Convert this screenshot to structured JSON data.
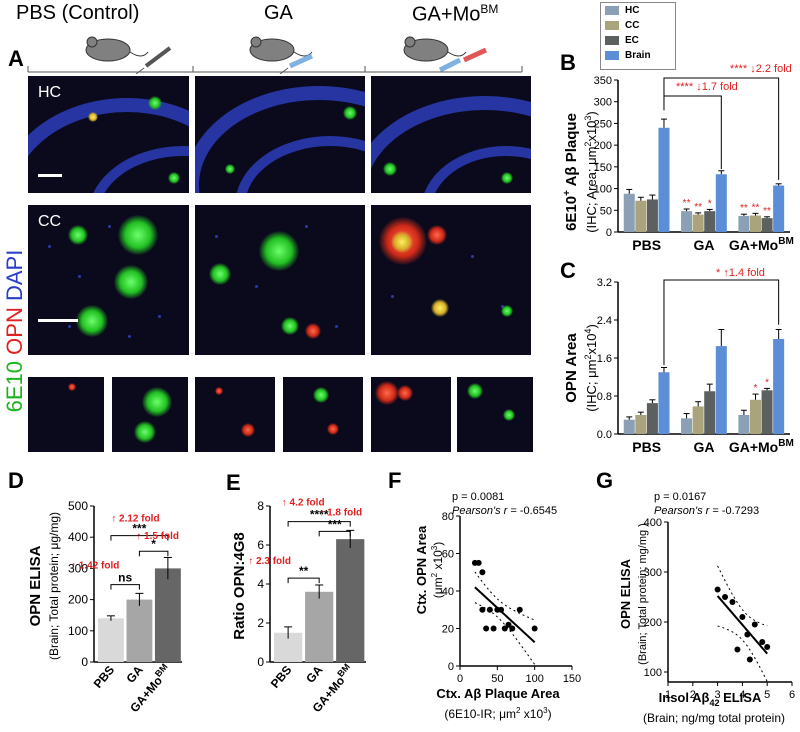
{
  "header": {
    "groups": [
      "PBS (Control)",
      "GA",
      "GA+Mo"
    ],
    "group_sup": [
      "",
      "",
      "BM"
    ]
  },
  "panels": {
    "A": "A",
    "B": "B",
    "C": "C",
    "D": "D",
    "E": "E",
    "F": "F",
    "G": "G"
  },
  "micro": {
    "row1_label": "HC",
    "row2_label": "CC",
    "stain_label": [
      "6E10",
      "OPN",
      "DAPI"
    ]
  },
  "legend": {
    "items": [
      {
        "name": "HC",
        "color": "#8b9fb5"
      },
      {
        "name": "CC",
        "color": "#a9a47c"
      },
      {
        "name": "EC",
        "color": "#5d6060"
      },
      {
        "name": "Brain",
        "color": "#5b8ed6"
      }
    ]
  },
  "chart_data": [
    {
      "id": "B",
      "type": "bar",
      "categories": [
        "PBS",
        "GA",
        "GA+Mo"
      ],
      "category_sup": [
        "",
        "",
        "BM"
      ],
      "series_names": [
        "HC",
        "CC",
        "EC",
        "Brain"
      ],
      "values": [
        [
          88,
          72,
          75,
          240
        ],
        [
          48,
          40,
          48,
          133
        ],
        [
          37,
          38,
          32,
          107
        ]
      ],
      "errors": [
        [
          10,
          8,
          10,
          20
        ],
        [
          5,
          4,
          4,
          8
        ],
        [
          4,
          5,
          3,
          4
        ]
      ],
      "ylabel": "6E10",
      "ylabel_sup": "+",
      "ylabel_rest": " Aβ Plaque",
      "ylabel2": "(IHC; Area; μm",
      "ylabel2_sup": "2",
      "ylabel2_rest": "x10",
      "ylabel2_sup2": "3",
      "ylabel2_end": ")",
      "ylim": [
        0,
        350
      ],
      "yticks": [
        "0",
        "50",
        "100",
        "150",
        "200",
        "250",
        "300",
        "350"
      ],
      "sig_marks": [
        "**",
        "**",
        "*",
        "**",
        "**",
        "**"
      ],
      "annotations": [
        {
          "stars": "****",
          "fold": "↓2.2 fold"
        },
        {
          "stars": "****",
          "fold": "↓1.7 fold"
        }
      ]
    },
    {
      "id": "C",
      "type": "bar",
      "categories": [
        "PBS",
        "GA",
        "GA+Mo"
      ],
      "category_sup": [
        "",
        "",
        "BM"
      ],
      "series_names": [
        "HC",
        "CC",
        "EC",
        "Brain"
      ],
      "values": [
        [
          0.3,
          0.4,
          0.65,
          1.3
        ],
        [
          0.33,
          0.58,
          0.9,
          1.85
        ],
        [
          0.4,
          0.72,
          0.92,
          2.0
        ]
      ],
      "errors": [
        [
          0.06,
          0.06,
          0.07,
          0.1
        ],
        [
          0.1,
          0.1,
          0.15,
          0.35
        ],
        [
          0.1,
          0.12,
          0.04,
          0.2
        ]
      ],
      "ylabel": "OPN Area",
      "ylabel2": "(IHC; μm",
      "ylabel2_sup": "2",
      "ylabel2_rest": "x10",
      "ylabel2_sup2": "4",
      "ylabel2_end": ")",
      "ylim": [
        0,
        3.2
      ],
      "yticks": [
        "0.0",
        "0.8",
        "1.6",
        "2.4",
        "3.2"
      ],
      "sig_marks": [
        "*",
        "*"
      ],
      "annotations": [
        {
          "stars": "*",
          "fold": "↑1.4 fold"
        }
      ]
    },
    {
      "id": "D",
      "type": "bar",
      "categories": [
        "PBS",
        "GA",
        "GA+Mo"
      ],
      "category_sup": [
        "",
        "",
        "BM"
      ],
      "values": [
        140,
        200,
        300
      ],
      "errors": [
        8,
        20,
        35
      ],
      "colors": [
        "#d9d9d9",
        "#a6a6a6",
        "#666666"
      ],
      "ylabel": "OPN ELISA",
      "ylabel2": "(Brain; Total protein; μg/mg)",
      "ylim": [
        0,
        500
      ],
      "yticks": [
        "0",
        "100",
        "200",
        "300",
        "400",
        "500"
      ],
      "sig": [
        "***",
        "*",
        "ns"
      ],
      "folds": [
        "2.12 fold",
        "1.5 fold",
        "1.42 fold"
      ]
    },
    {
      "id": "E",
      "type": "bar",
      "categories": [
        "PBS",
        "GA",
        "GA+Mo"
      ],
      "category_sup": [
        "",
        "",
        "BM"
      ],
      "values": [
        1.5,
        3.6,
        6.3
      ],
      "errors": [
        0.3,
        0.35,
        0.45
      ],
      "colors": [
        "#d9d9d9",
        "#a6a6a6",
        "#666666"
      ],
      "ylabel": "Ratio OPN:4G8",
      "ylim": [
        0,
        8
      ],
      "yticks": [
        "0",
        "2",
        "4",
        "6",
        "8"
      ],
      "sig": [
        "****",
        "***",
        "**"
      ],
      "folds": [
        "4.2 fold",
        "1.8 fold",
        "2.3 fold"
      ]
    },
    {
      "id": "F",
      "type": "scatter",
      "x": [
        20,
        25,
        30,
        30,
        35,
        40,
        45,
        50,
        55,
        60,
        65,
        70,
        80,
        100
      ],
      "y": [
        55,
        55,
        50,
        30,
        20,
        30,
        20,
        30,
        30,
        20,
        22,
        20,
        30,
        20
      ],
      "stat_p": "p = 0.0081",
      "stat_r_label": "Pearson's r",
      "stat_r_value": " = -0.6545",
      "ylabel": "Ctx. OPN Area",
      "ylabel2": "(μm",
      "ylabel2_sup": "2",
      "ylabel2_rest": " x10",
      "ylabel2_sup2": "3",
      "ylabel2_end": ")",
      "xlabel": "Ctx. Aβ Plaque Area",
      "xlabel2": "(6E10-IR; μm",
      "xlabel2_sup": "2",
      "xlabel2_rest": " x10",
      "xlabel2_sup2": "3",
      "xlabel2_end": ")",
      "xlim": [
        0,
        150
      ],
      "ylim": [
        0,
        80
      ],
      "xticks": [
        "0",
        "50",
        "100",
        "150"
      ],
      "yticks": [
        "0",
        "20",
        "40",
        "60",
        "80"
      ]
    },
    {
      "id": "G",
      "type": "scatter",
      "x": [
        3.0,
        3.3,
        3.6,
        3.8,
        4.0,
        4.2,
        4.3,
        4.5,
        4.8,
        5.0
      ],
      "y": [
        265,
        250,
        240,
        145,
        210,
        175,
        125,
        195,
        160,
        150
      ],
      "stat_p": "p = 0.0167",
      "stat_r_label": "Pearson's r",
      "stat_r_value": " = -0.7293",
      "ylabel": "OPN ELISA",
      "ylabel2": "(Brain; Total protein; mg/mg )",
      "xlabel": "Insol Aβ",
      "xlabel_sub": "42",
      "xlabel_rest": " ELISA",
      "xlabel2": "(Brain; ng/mg total protein)",
      "xlim": [
        1,
        6
      ],
      "ylim": [
        80,
        400
      ],
      "xticks": [
        "1",
        "2",
        "3",
        "4",
        "5",
        "6"
      ],
      "yticks": [
        "100",
        "200",
        "300",
        "400"
      ]
    }
  ]
}
